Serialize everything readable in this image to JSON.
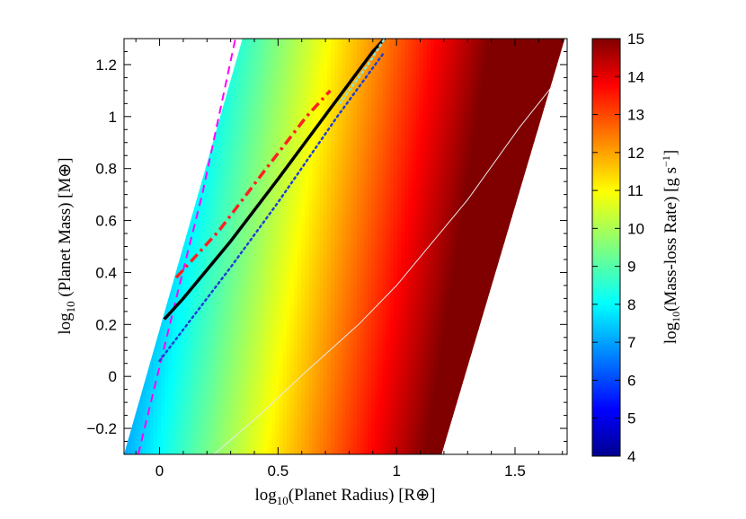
{
  "chart_data": {
    "type": "heatmap",
    "xlabel": "log10(Planet Radius) [R⊕]",
    "ylabel": "log10 (Planet Mass) [M⊕]",
    "xlim": [
      -0.15,
      1.72
    ],
    "ylim": [
      -0.3,
      1.3
    ],
    "xticks": [
      0,
      0.5,
      1,
      1.5
    ],
    "xtick_labels": [
      "0",
      "0.5",
      "1",
      "1.5"
    ],
    "yticks": [
      -0.2,
      0,
      0.2,
      0.4,
      0.6,
      0.8,
      1,
      1.2
    ],
    "ytick_labels": [
      "−0.2",
      "0",
      "0.2",
      "0.4",
      "0.6",
      "0.8",
      "1",
      "1.2"
    ],
    "colorbar": {
      "label": "log10(Mass-loss Rate) [g s⁻¹]",
      "range": [
        4,
        15
      ],
      "ticks": [
        4,
        5,
        6,
        7,
        8,
        9,
        10,
        11,
        12,
        13,
        14,
        15
      ],
      "tick_labels": [
        "4",
        "5",
        "6",
        "7",
        "8",
        "9",
        "10",
        "11",
        "12",
        "13",
        "14",
        "15"
      ],
      "colormap": "jet"
    },
    "data_region": {
      "left_edge": [
        [
          -0.15,
          -0.3
        ],
        [
          0.35,
          1.3
        ]
      ],
      "right_edge": [
        [
          1.19,
          -0.3
        ],
        [
          1.71,
          1.3
        ]
      ]
    },
    "field_model": "log10 rate ≈ 8.0 + 6.1 × (x − 0.3 × y) + 0.8 × (y − 0.2)",
    "curves": [
      {
        "style": "dashed",
        "color": "#ff00ff",
        "points": [
          [
            -0.09,
            -0.3
          ],
          [
            0.07,
            0.3
          ],
          [
            0.18,
            0.7
          ],
          [
            0.32,
            1.3
          ]
        ]
      },
      {
        "style": "dash-dot",
        "color": "#ff2020",
        "points": [
          [
            0.07,
            0.38
          ],
          [
            0.25,
            0.56
          ],
          [
            0.45,
            0.8
          ],
          [
            0.62,
            1.0
          ],
          [
            0.72,
            1.1
          ]
        ]
      },
      {
        "style": "solid-thick",
        "color": "#000000",
        "points": [
          [
            0.02,
            0.22
          ],
          [
            0.1,
            0.3
          ],
          [
            0.3,
            0.52
          ],
          [
            0.5,
            0.76
          ],
          [
            0.72,
            1.03
          ],
          [
            0.9,
            1.25
          ],
          [
            0.95,
            1.3
          ]
        ]
      },
      {
        "style": "dotted",
        "color": "#1f3fd8",
        "points": [
          [
            0.0,
            0.06
          ],
          [
            0.3,
            0.42
          ],
          [
            0.5,
            0.67
          ],
          [
            0.75,
            1.0
          ],
          [
            0.95,
            1.25
          ]
        ]
      },
      {
        "style": "dotted",
        "color": "#8be3d8",
        "points": [
          [
            0.76,
            1.05
          ],
          [
            0.88,
            1.2
          ],
          [
            0.95,
            1.3
          ]
        ]
      },
      {
        "style": "solid-thin",
        "color": "#e8e8e8",
        "points": [
          [
            0.23,
            -0.3
          ],
          [
            0.42,
            -0.15
          ],
          [
            0.62,
            0.02
          ],
          [
            0.84,
            0.2
          ],
          [
            1.0,
            0.35
          ],
          [
            1.3,
            0.68
          ],
          [
            1.52,
            0.96
          ],
          [
            1.66,
            1.12
          ]
        ]
      }
    ]
  }
}
